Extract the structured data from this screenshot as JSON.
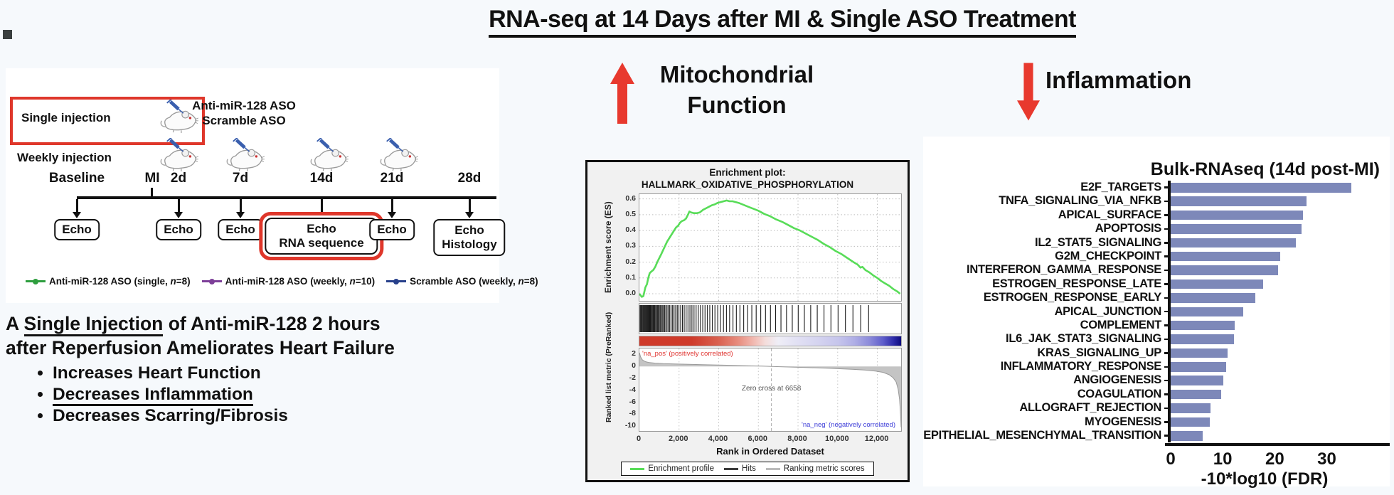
{
  "title": "RNA-seq at 14 Days after MI & Single ASO Treatment",
  "study_design": {
    "single_injection": "Single injection",
    "weekly_injection": "Weekly injection",
    "aso_line1": "Anti-miR-128 ASO",
    "aso_line2": "Scramble ASO",
    "timeline": {
      "baseline": {
        "label": "Baseline",
        "echo": "Echo"
      },
      "mi": {
        "label": "MI"
      },
      "d2": {
        "label": "2d",
        "echo": "Echo"
      },
      "d7": {
        "label": "7d",
        "echo": "Echo"
      },
      "d14": {
        "label": "14d",
        "echo_line1": "Echo",
        "echo_line2": "RNA sequence"
      },
      "d21": {
        "label": "21d",
        "echo": "Echo"
      },
      "d28": {
        "label": "28d",
        "echo_line1": "Echo",
        "echo_line2": "Histology"
      }
    },
    "legend": [
      {
        "label": "Anti-miR-128 ASO (single, n=8)",
        "color": "#2e9e3e"
      },
      {
        "label": "Anti-miR-128 ASO (weekly, n=10)",
        "color": "#7d3f98"
      },
      {
        "label": "Scramble ASO (weekly, n=8)",
        "color": "#27408b"
      }
    ]
  },
  "summary": {
    "line1_prefix": "A ",
    "line1_underlined": "Single Injection",
    "line1_suffix": " of Anti-miR-128 2 hours",
    "line2": "after Reperfusion Ameliorates Heart Failure",
    "bullets": [
      {
        "text": "Increases Heart Function",
        "underline": false
      },
      {
        "text": "Decreases Inflammation",
        "underline": true
      },
      {
        "text": "Decreases Scarring/Fibrosis",
        "underline": false
      }
    ]
  },
  "headers": {
    "arrow_color": "#e8392e",
    "mito_line1": "Mitochondrial",
    "mito_line2": "Function",
    "inflammation": "Inflammation"
  },
  "chart_data": [
    {
      "type": "line",
      "name": "GSEA enrichment plot",
      "title_line1": "Enrichment plot:",
      "title_line2": "HALLMARK_OXIDATIVE_PHOSPHORYLATION",
      "ylabel": "Enrichment score (ES)",
      "ylabel2": "Ranked list metric (PreRanked)",
      "xlabel": "Rank in Ordered Dataset",
      "annotations": {
        "pos": "'na_pos' (positively correlated)",
        "neg": "'na_neg' (negatively correlated)",
        "zero": "Zero cross at 6658"
      },
      "legend": [
        "Enrichment profile",
        "Hits",
        "Ranking metric scores"
      ],
      "legend_colors": [
        "#58dc58",
        "#3c3c3c",
        "#bbbbbb"
      ],
      "xlim": [
        0,
        13200
      ],
      "xticks": [
        0,
        2000,
        4000,
        6000,
        8000,
        10000,
        12000
      ],
      "xtick_labels": [
        "0",
        "2,000",
        "4,000",
        "6,000",
        "8,000",
        "10,000",
        "12,000"
      ],
      "es_color": "#58dc58",
      "es_ylim": [
        -0.045,
        0.63
      ],
      "es_yticks": [
        0.6,
        0.5,
        0.4,
        0.3,
        0.2,
        0.1,
        0.0
      ],
      "es_points": [
        [
          0,
          0
        ],
        [
          120,
          -0.02
        ],
        [
          200,
          -0.015
        ],
        [
          300,
          0.04
        ],
        [
          380,
          0.06
        ],
        [
          450,
          0.1
        ],
        [
          520,
          0.13
        ],
        [
          600,
          0.14
        ],
        [
          700,
          0.15
        ],
        [
          800,
          0.17
        ],
        [
          900,
          0.2
        ],
        [
          1000,
          0.225
        ],
        [
          1100,
          0.25
        ],
        [
          1250,
          0.29
        ],
        [
          1400,
          0.33
        ],
        [
          1550,
          0.36
        ],
        [
          1700,
          0.39
        ],
        [
          1850,
          0.42
        ],
        [
          1950,
          0.43
        ],
        [
          2050,
          0.45
        ],
        [
          2150,
          0.46
        ],
        [
          2250,
          0.465
        ],
        [
          2350,
          0.475
        ],
        [
          2450,
          0.5
        ],
        [
          2520,
          0.52
        ],
        [
          2600,
          0.515
        ],
        [
          2750,
          0.51
        ],
        [
          2900,
          0.51
        ],
        [
          3050,
          0.515
        ],
        [
          3200,
          0.53
        ],
        [
          3350,
          0.54
        ],
        [
          3500,
          0.55
        ],
        [
          3650,
          0.56
        ],
        [
          3800,
          0.565
        ],
        [
          3950,
          0.575
        ],
        [
          4100,
          0.58
        ],
        [
          4250,
          0.585
        ],
        [
          4400,
          0.59
        ],
        [
          4550,
          0.585
        ],
        [
          4700,
          0.585
        ],
        [
          4850,
          0.58
        ],
        [
          5000,
          0.575
        ],
        [
          5200,
          0.565
        ],
        [
          5400,
          0.555
        ],
        [
          5600,
          0.545
        ],
        [
          5800,
          0.535
        ],
        [
          6000,
          0.525
        ],
        [
          6300,
          0.505
        ],
        [
          6600,
          0.49
        ],
        [
          6900,
          0.47
        ],
        [
          7200,
          0.455
        ],
        [
          7500,
          0.435
        ],
        [
          7800,
          0.415
        ],
        [
          8100,
          0.4
        ],
        [
          8400,
          0.38
        ],
        [
          8700,
          0.36
        ],
        [
          9000,
          0.34
        ],
        [
          9300,
          0.315
        ],
        [
          9600,
          0.295
        ],
        [
          9900,
          0.27
        ],
        [
          10200,
          0.25
        ],
        [
          10500,
          0.225
        ],
        [
          10800,
          0.2
        ],
        [
          11000,
          0.185
        ],
        [
          11150,
          0.165
        ],
        [
          11250,
          0.17
        ],
        [
          11400,
          0.15
        ],
        [
          11600,
          0.135
        ],
        [
          11800,
          0.115
        ],
        [
          12000,
          0.1
        ],
        [
          12200,
          0.08
        ],
        [
          12400,
          0.065
        ],
        [
          12600,
          0.05
        ],
        [
          12800,
          0.03
        ],
        [
          13000,
          0.015
        ],
        [
          13150,
          0.0
        ]
      ],
      "hits": [
        30,
        70,
        110,
        150,
        190,
        225,
        260,
        295,
        330,
        365,
        400,
        435,
        470,
        505,
        540,
        575,
        615,
        655,
        695,
        735,
        775,
        820,
        865,
        910,
        955,
        1000,
        1050,
        1100,
        1155,
        1210,
        1270,
        1330,
        1395,
        1460,
        1530,
        1600,
        1675,
        1750,
        1830,
        1910,
        1995,
        2080,
        2170,
        2260,
        2355,
        2450,
        2550,
        2650,
        2755,
        2860,
        2970,
        3080,
        3195,
        3310,
        3430,
        3550,
        3680,
        3810,
        3950,
        4090,
        4240,
        4390,
        4550,
        4720,
        4890,
        5070,
        5260,
        5460,
        5670,
        5890,
        6120,
        6360,
        6610,
        6870,
        7140,
        7420,
        7710,
        8010,
        8320,
        8640,
        8970,
        9310,
        9660,
        10020,
        10390,
        10770,
        11160,
        11560
      ],
      "rank_ylim": [
        -10.8,
        3
      ],
      "rank_yticks": [
        2,
        0,
        -2,
        -4,
        -6,
        -8,
        -10
      ],
      "zero_cross_x": 6658,
      "rank_fill": "#c4c4c4",
      "rank_points": [
        [
          0,
          2.3
        ],
        [
          60,
          1.6
        ],
        [
          150,
          1.1
        ],
        [
          300,
          0.8
        ],
        [
          500,
          0.65
        ],
        [
          800,
          0.55
        ],
        [
          1200,
          0.48
        ],
        [
          1800,
          0.42
        ],
        [
          2500,
          0.36
        ],
        [
          3200,
          0.3
        ],
        [
          4000,
          0.24
        ],
        [
          4800,
          0.18
        ],
        [
          5600,
          0.1
        ],
        [
          6200,
          0.05
        ],
        [
          6658,
          0
        ],
        [
          7200,
          -0.06
        ],
        [
          7800,
          -0.12
        ],
        [
          8400,
          -0.18
        ],
        [
          9000,
          -0.25
        ],
        [
          9600,
          -0.32
        ],
        [
          10200,
          -0.4
        ],
        [
          10800,
          -0.5
        ],
        [
          11400,
          -0.62
        ],
        [
          11900,
          -0.78
        ],
        [
          12300,
          -1.0
        ],
        [
          12600,
          -1.4
        ],
        [
          12800,
          -1.9
        ],
        [
          12950,
          -2.6
        ],
        [
          13050,
          -3.8
        ],
        [
          13120,
          -5.5
        ],
        [
          13170,
          -8.0
        ],
        [
          13200,
          -10.2
        ]
      ]
    },
    {
      "type": "bar",
      "title": "Bulk-RNAseq (14d post-MI)",
      "xlabel": "-10*log10 (FDR)",
      "xlim": [
        0,
        41
      ],
      "xticks": [
        0,
        10,
        20,
        30
      ],
      "bar_color": "#7d88b9",
      "categories": [
        "E2F_TARGETS",
        "TNFA_SIGNALING_VIA_NFKB",
        "APICAL_SURFACE",
        "APOPTOSIS",
        "IL2_STAT5_SIGNALING",
        "G2M_CHECKPOINT",
        "INTERFERON_GAMMA_RESPONSE",
        "ESTROGEN_RESPONSE_LATE",
        "ESTROGEN_RESPONSE_EARLY",
        "APICAL_JUNCTION",
        "COMPLEMENT",
        "IL6_JAK_STAT3_SIGNALING",
        "KRAS_SIGNALING_UP",
        "INFLAMMATORY_RESPONSE",
        "ANGIOGENESIS",
        "COAGULATION",
        "ALLOGRAFT_REJECTION",
        "MYOGENESIS",
        "EPITHELIAL_MESENCHYMAL_TRANSITION"
      ],
      "values": [
        34.7,
        26.1,
        25.4,
        25.1,
        24.0,
        21.0,
        20.6,
        17.8,
        16.2,
        14.0,
        12.3,
        12.2,
        11.0,
        10.6,
        10.1,
        9.7,
        7.7,
        7.5,
        6.1
      ]
    }
  ]
}
